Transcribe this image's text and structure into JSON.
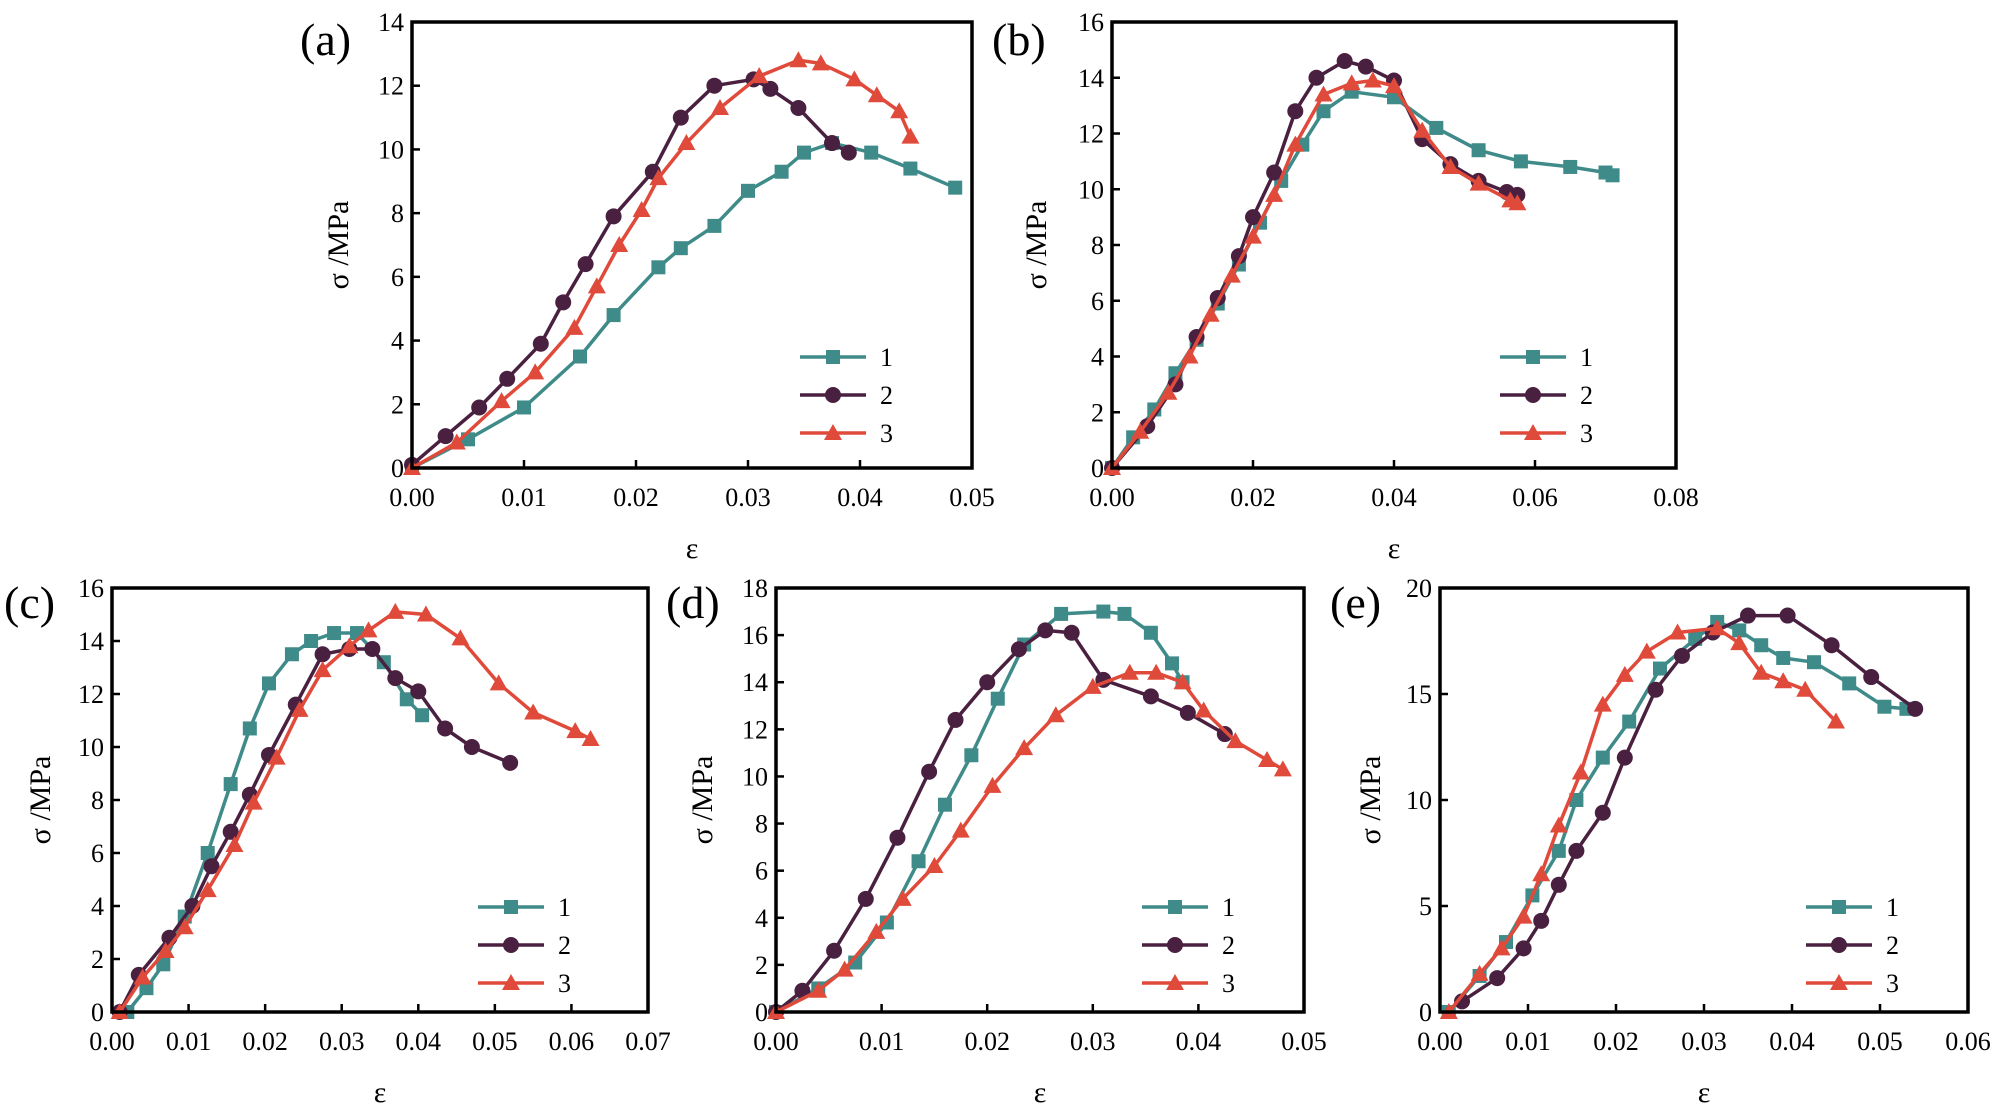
{
  "colors": {
    "series1": "#3f8b89",
    "series2": "#4a2040",
    "series3": "#e04a3b"
  },
  "chart_data": [
    {
      "panel_label": "(a)",
      "type": "line",
      "xlabel": "ε",
      "ylabel": "σ /MPa",
      "xlim": [
        0,
        0.05
      ],
      "ylim": [
        0,
        14
      ],
      "xticks": [
        "0.00",
        "0.01",
        "0.02",
        "0.03",
        "0.04",
        "0.05"
      ],
      "yticks": [
        "0",
        "2",
        "4",
        "6",
        "8",
        "10",
        "12",
        "14"
      ],
      "legend": [
        "1",
        "2",
        "3"
      ],
      "series": [
        {
          "name": "1",
          "x": [
            0,
            0.005,
            0.01,
            0.015,
            0.018,
            0.022,
            0.024,
            0.027,
            0.03,
            0.033,
            0.035,
            0.0375,
            0.041,
            0.0445,
            0.0485
          ],
          "y": [
            0,
            0.9,
            1.9,
            3.5,
            4.8,
            6.3,
            6.9,
            7.6,
            8.7,
            9.3,
            9.9,
            10.2,
            9.9,
            9.4,
            8.8
          ]
        },
        {
          "name": "2",
          "x": [
            0,
            0.003,
            0.006,
            0.0085,
            0.0115,
            0.0135,
            0.0155,
            0.018,
            0.0215,
            0.024,
            0.027,
            0.0305,
            0.032,
            0.0345,
            0.0375,
            0.039
          ],
          "y": [
            0.1,
            1.0,
            1.9,
            2.8,
            3.9,
            5.2,
            6.4,
            7.9,
            9.3,
            11.0,
            12.0,
            12.2,
            11.9,
            11.3,
            10.2,
            9.9
          ],
          "closing_markers": [
            12.2
          ]
        },
        {
          "name": "3",
          "x": [
            0,
            0.004,
            0.008,
            0.011,
            0.0145,
            0.0165,
            0.0185,
            0.0205,
            0.022,
            0.0245,
            0.0275,
            0.031,
            0.0345,
            0.0365,
            0.0395,
            0.0415,
            0.0435,
            0.0445
          ],
          "y": [
            0,
            0.8,
            2.1,
            3.0,
            4.4,
            5.7,
            7.0,
            8.1,
            9.1,
            10.2,
            11.3,
            12.3,
            12.8,
            12.7,
            12.2,
            11.7,
            11.2,
            10.4
          ]
        }
      ]
    },
    {
      "panel_label": "(b)",
      "type": "line",
      "xlabel": "ε",
      "ylabel": "σ /MPa",
      "xlim": [
        0,
        0.08
      ],
      "ylim": [
        0,
        16
      ],
      "xticks": [
        "0.00",
        "0.02",
        "0.04",
        "0.06",
        "0.08"
      ],
      "yticks": [
        "0",
        "2",
        "4",
        "6",
        "8",
        "10",
        "12",
        "14",
        "16"
      ],
      "legend": [
        "1",
        "2",
        "3"
      ],
      "series": [
        {
          "name": "1",
          "x": [
            0,
            0.003,
            0.006,
            0.009,
            0.012,
            0.015,
            0.018,
            0.021,
            0.024,
            0.027,
            0.03,
            0.034,
            0.04,
            0.046,
            0.052,
            0.058,
            0.065,
            0.07,
            0.071
          ],
          "y": [
            0,
            1.1,
            2.1,
            3.4,
            4.6,
            5.9,
            7.3,
            8.8,
            10.3,
            11.6,
            12.8,
            13.5,
            13.3,
            12.2,
            11.4,
            11.0,
            10.8,
            10.6,
            10.5
          ]
        },
        {
          "name": "2",
          "x": [
            0,
            0.005,
            0.009,
            0.012,
            0.015,
            0.018,
            0.02,
            0.023,
            0.026,
            0.029,
            0.033,
            0.036,
            0.04,
            0.044,
            0.048,
            0.052,
            0.056,
            0.0575
          ],
          "y": [
            0,
            1.5,
            3.0,
            4.7,
            6.1,
            7.6,
            9.0,
            10.6,
            12.8,
            14.0,
            14.6,
            14.4,
            13.9,
            11.8,
            10.9,
            10.3,
            9.9,
            9.8
          ]
        },
        {
          "name": "3",
          "x": [
            0,
            0.004,
            0.008,
            0.011,
            0.014,
            0.017,
            0.02,
            0.023,
            0.026,
            0.03,
            0.034,
            0.037,
            0.04,
            0.044,
            0.048,
            0.052,
            0.0565,
            0.0575
          ],
          "y": [
            0,
            1.3,
            2.7,
            4.0,
            5.5,
            6.9,
            8.3,
            9.8,
            11.6,
            13.4,
            13.8,
            13.9,
            13.7,
            12.1,
            10.8,
            10.2,
            9.6,
            9.5
          ]
        }
      ]
    },
    {
      "panel_label": "(c)",
      "type": "line",
      "xlabel": "ε",
      "ylabel": "σ /MPa",
      "xlim": [
        0,
        0.07
      ],
      "ylim": [
        0,
        16
      ],
      "xticks": [
        "0.00",
        "0.01",
        "0.02",
        "0.03",
        "0.04",
        "0.05",
        "0.06",
        "0.07"
      ],
      "yticks": [
        "0",
        "2",
        "4",
        "6",
        "8",
        "10",
        "12",
        "14",
        "16"
      ],
      "legend": [
        "1",
        "2",
        "3"
      ],
      "series": [
        {
          "name": "1",
          "x": [
            0.002,
            0.0045,
            0.0067,
            0.0095,
            0.0125,
            0.0155,
            0.018,
            0.0205,
            0.0235,
            0.026,
            0.029,
            0.032,
            0.0355,
            0.0385,
            0.0405
          ],
          "y": [
            0,
            0.9,
            1.8,
            3.6,
            6.0,
            8.6,
            10.7,
            12.4,
            13.5,
            14.0,
            14.3,
            14.3,
            13.2,
            11.8,
            11.2
          ]
        },
        {
          "name": "2",
          "x": [
            0.001,
            0.0035,
            0.0075,
            0.0105,
            0.013,
            0.0155,
            0.018,
            0.0205,
            0.024,
            0.0275,
            0.031,
            0.034,
            0.037,
            0.04,
            0.0435,
            0.047,
            0.052
          ],
          "y": [
            0,
            1.4,
            2.8,
            4.0,
            5.5,
            6.8,
            8.2,
            9.7,
            11.6,
            13.5,
            13.7,
            13.7,
            12.6,
            12.1,
            10.7,
            10.0,
            9.4
          ]
        },
        {
          "name": "3",
          "x": [
            0.001,
            0.004,
            0.007,
            0.0095,
            0.0125,
            0.016,
            0.0185,
            0.0215,
            0.0245,
            0.0275,
            0.031,
            0.0335,
            0.037,
            0.041,
            0.0455,
            0.0505,
            0.055,
            0.0605,
            0.0625
          ],
          "y": [
            0,
            1.3,
            2.3,
            3.2,
            4.6,
            6.3,
            7.9,
            9.6,
            11.4,
            12.9,
            13.8,
            14.4,
            15.1,
            15.0,
            14.1,
            12.4,
            11.3,
            10.6,
            10.3
          ]
        }
      ]
    },
    {
      "panel_label": "(d)",
      "type": "line",
      "xlabel": "ε",
      "ylabel": "σ /MPa",
      "xlim": [
        0,
        0.05
      ],
      "ylim": [
        0,
        18
      ],
      "xticks": [
        "0.00",
        "0.01",
        "0.02",
        "0.03",
        "0.04",
        "0.05"
      ],
      "yticks": [
        "0",
        "2",
        "4",
        "6",
        "8",
        "10",
        "12",
        "14",
        "16",
        "18"
      ],
      "legend": [
        "1",
        "2",
        "3"
      ],
      "series": [
        {
          "name": "1",
          "x": [
            0,
            0.004,
            0.0075,
            0.0105,
            0.0135,
            0.016,
            0.0185,
            0.021,
            0.0235,
            0.027,
            0.031,
            0.033,
            0.0355,
            0.0375,
            0.0385
          ],
          "y": [
            0,
            1.0,
            2.1,
            3.8,
            6.4,
            8.8,
            10.9,
            13.3,
            15.6,
            16.9,
            17.0,
            16.9,
            16.1,
            14.8,
            14.0
          ]
        },
        {
          "name": "2",
          "x": [
            0,
            0.0025,
            0.0055,
            0.0085,
            0.0115,
            0.0145,
            0.017,
            0.02,
            0.023,
            0.0255,
            0.028,
            0.031,
            0.0355,
            0.039,
            0.0425
          ],
          "y": [
            0,
            0.9,
            2.6,
            4.8,
            7.4,
            10.2,
            12.4,
            14.0,
            15.4,
            16.2,
            16.1,
            14.1,
            13.4,
            12.7,
            11.8
          ]
        },
        {
          "name": "3",
          "x": [
            0,
            0.004,
            0.0065,
            0.0095,
            0.012,
            0.015,
            0.0175,
            0.0205,
            0.0235,
            0.0265,
            0.03,
            0.0335,
            0.036,
            0.0385,
            0.0405,
            0.0435,
            0.0465,
            0.048
          ],
          "y": [
            0,
            0.9,
            1.8,
            3.4,
            4.8,
            6.2,
            7.7,
            9.6,
            11.2,
            12.6,
            13.8,
            14.4,
            14.4,
            14.0,
            12.8,
            11.5,
            10.7,
            10.3
          ]
        }
      ]
    },
    {
      "panel_label": "(e)",
      "type": "line",
      "xlabel": "ε",
      "ylabel": "σ /MPa",
      "xlim": [
        0,
        0.06
      ],
      "ylim": [
        0,
        20
      ],
      "xticks": [
        "0.00",
        "0.01",
        "0.02",
        "0.03",
        "0.04",
        "0.05",
        "0.06"
      ],
      "yticks": [
        "0",
        "5",
        "10",
        "15",
        "20"
      ],
      "legend": [
        "1",
        "2",
        "3"
      ],
      "series": [
        {
          "name": "1",
          "x": [
            0.001,
            0.0045,
            0.0075,
            0.0105,
            0.0135,
            0.0155,
            0.0185,
            0.0215,
            0.025,
            0.029,
            0.0315,
            0.034,
            0.0365,
            0.039,
            0.0425,
            0.0465,
            0.0505,
            0.053
          ],
          "y": [
            0,
            1.7,
            3.3,
            5.5,
            7.6,
            10.0,
            12.0,
            13.7,
            16.2,
            17.6,
            18.4,
            18.0,
            17.3,
            16.7,
            16.5,
            15.5,
            14.4,
            14.3
          ]
        },
        {
          "name": "2",
          "x": [
            0.0025,
            0.0065,
            0.0095,
            0.0115,
            0.0135,
            0.0155,
            0.0185,
            0.021,
            0.0245,
            0.0275,
            0.031,
            0.035,
            0.0395,
            0.0445,
            0.049,
            0.054
          ],
          "y": [
            0.5,
            1.6,
            3.0,
            4.3,
            6.0,
            7.6,
            9.4,
            12.0,
            15.2,
            16.8,
            17.9,
            18.7,
            18.7,
            17.3,
            15.8,
            14.3
          ]
        },
        {
          "name": "3",
          "x": [
            0.001,
            0.0045,
            0.007,
            0.0095,
            0.0115,
            0.0135,
            0.016,
            0.0185,
            0.021,
            0.0235,
            0.027,
            0.0315,
            0.034,
            0.0365,
            0.039,
            0.0415,
            0.045
          ],
          "y": [
            0,
            1.8,
            3.0,
            4.5,
            6.5,
            8.8,
            11.3,
            14.5,
            15.9,
            17.0,
            17.9,
            18.1,
            17.4,
            16.0,
            15.6,
            15.2,
            13.7
          ]
        }
      ]
    }
  ]
}
